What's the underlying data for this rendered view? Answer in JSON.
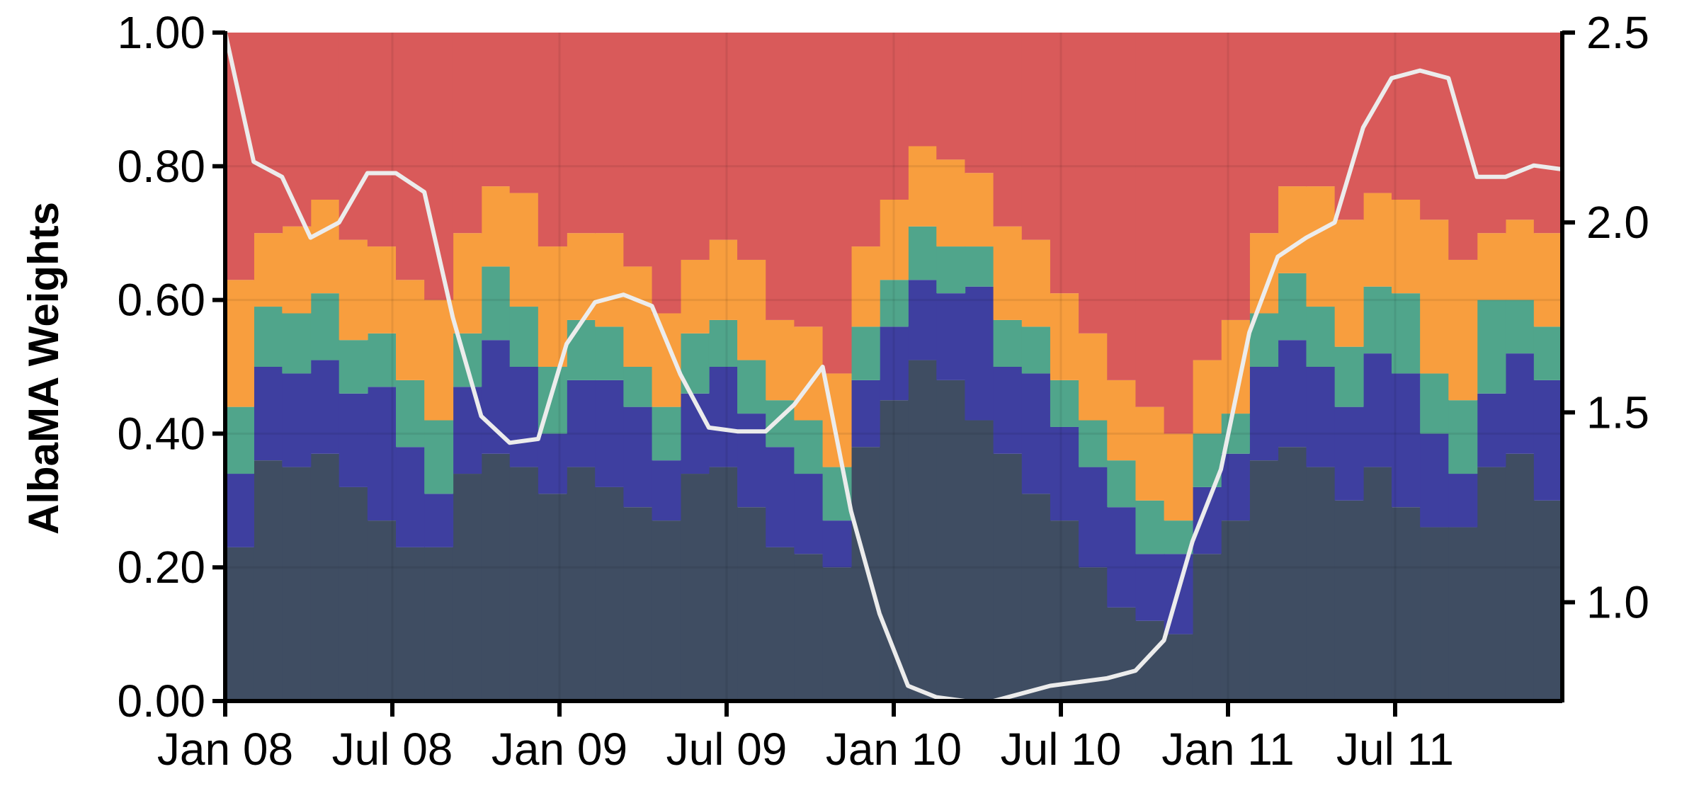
{
  "chart_data": {
    "type": "area",
    "stacked": true,
    "step": true,
    "ylabel": "AlbaMA Weights",
    "ylim": [
      0,
      1
    ],
    "y2lim": [
      0.74,
      2.5
    ],
    "grid": true,
    "x_start": "Jan 08",
    "x_tick_labels": [
      "Jan 08",
      "Jul 08",
      "Jan 09",
      "Jul 09",
      "Jan 10",
      "Jul 10",
      "Jan 11",
      "Jul 11"
    ],
    "y_tick_labels": [
      "0.00",
      "0.20",
      "0.40",
      "0.60",
      "0.80",
      "1.00"
    ],
    "y2_tick_labels": [
      "1.0",
      "1.5",
      "2.0",
      "2.5"
    ],
    "colors": [
      "#3f4d62",
      "#3e3fa0",
      "#50a58b",
      "#f89e3e",
      "#d95a5a"
    ],
    "line_color": "#ececec",
    "series": [
      {
        "values": [
          0.23,
          0.36,
          0.35,
          0.37,
          0.32,
          0.27,
          0.23,
          0.23,
          0.34,
          0.37,
          0.35,
          0.31,
          0.35,
          0.32,
          0.29,
          0.27,
          0.34,
          0.35,
          0.29,
          0.23,
          0.22,
          0.2,
          0.38,
          0.45,
          0.51,
          0.48,
          0.42,
          0.37,
          0.31,
          0.27,
          0.2,
          0.14,
          0.12,
          0.1,
          0.22,
          0.27,
          0.36,
          0.38,
          0.35,
          0.3,
          0.35,
          0.29,
          0.26,
          0.26,
          0.35,
          0.37,
          0.3
        ]
      },
      {
        "values": [
          0.11,
          0.14,
          0.14,
          0.14,
          0.14,
          0.2,
          0.15,
          0.08,
          0.13,
          0.17,
          0.15,
          0.09,
          0.13,
          0.16,
          0.15,
          0.09,
          0.12,
          0.15,
          0.14,
          0.15,
          0.12,
          0.07,
          0.1,
          0.11,
          0.12,
          0.13,
          0.2,
          0.13,
          0.18,
          0.14,
          0.15,
          0.15,
          0.1,
          0.12,
          0.1,
          0.1,
          0.14,
          0.16,
          0.15,
          0.14,
          0.17,
          0.2,
          0.14,
          0.08,
          0.11,
          0.15,
          0.18
        ]
      },
      {
        "values": [
          0.1,
          0.09,
          0.09,
          0.1,
          0.08,
          0.08,
          0.1,
          0.11,
          0.08,
          0.11,
          0.09,
          0.1,
          0.09,
          0.08,
          0.06,
          0.08,
          0.09,
          0.07,
          0.08,
          0.07,
          0.08,
          0.08,
          0.08,
          0.07,
          0.08,
          0.07,
          0.06,
          0.07,
          0.07,
          0.07,
          0.07,
          0.07,
          0.08,
          0.05,
          0.08,
          0.06,
          0.08,
          0.1,
          0.09,
          0.09,
          0.1,
          0.12,
          0.09,
          0.11,
          0.14,
          0.08,
          0.08
        ]
      },
      {
        "values": [
          0.19,
          0.11,
          0.13,
          0.14,
          0.15,
          0.13,
          0.15,
          0.18,
          0.15,
          0.12,
          0.17,
          0.18,
          0.13,
          0.14,
          0.15,
          0.14,
          0.11,
          0.12,
          0.15,
          0.12,
          0.14,
          0.14,
          0.12,
          0.12,
          0.12,
          0.13,
          0.11,
          0.14,
          0.13,
          0.13,
          0.13,
          0.12,
          0.14,
          0.13,
          0.11,
          0.14,
          0.12,
          0.13,
          0.18,
          0.19,
          0.14,
          0.14,
          0.23,
          0.21,
          0.1,
          0.12,
          0.14
        ]
      },
      {
        "values": [
          0.37,
          0.3,
          0.29,
          0.25,
          0.31,
          0.31,
          0.37,
          0.4,
          0.3,
          0.23,
          0.24,
          0.32,
          0.3,
          0.3,
          0.36,
          0.42,
          0.34,
          0.31,
          0.34,
          0.43,
          0.44,
          0.51,
          0.32,
          0.25,
          0.17,
          0.19,
          0.21,
          0.29,
          0.31,
          0.4,
          0.45,
          0.52,
          0.56,
          0.6,
          0.49,
          0.43,
          0.3,
          0.23,
          0.23,
          0.28,
          0.24,
          0.23,
          0.28,
          0.34,
          0.3,
          0.28,
          0.3
        ]
      }
    ],
    "line": {
      "values": [
        2.5,
        2.16,
        2.12,
        1.96,
        2.0,
        2.13,
        2.13,
        2.08,
        1.75,
        1.49,
        1.42,
        1.43,
        1.68,
        1.79,
        1.81,
        1.78,
        1.6,
        1.46,
        1.45,
        1.45,
        1.52,
        1.62,
        1.24,
        0.97,
        0.78,
        0.75,
        0.74,
        0.74,
        0.76,
        0.78,
        0.79,
        0.8,
        0.82,
        0.9,
        1.16,
        1.35,
        1.71,
        1.91,
        1.96,
        2.0,
        2.25,
        2.38,
        2.4,
        2.38,
        2.12,
        2.12,
        2.15,
        2.14
      ]
    }
  }
}
